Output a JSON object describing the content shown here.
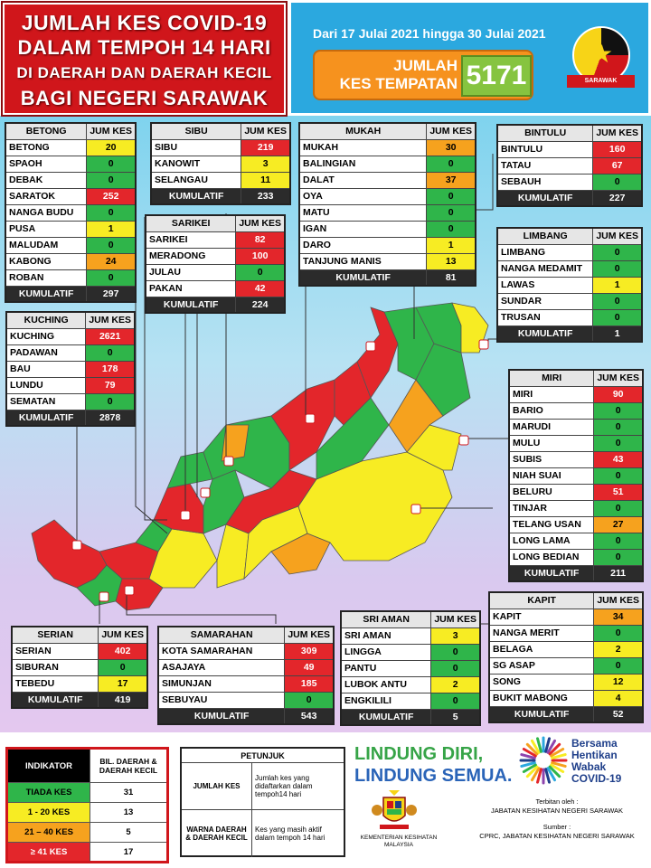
{
  "title": {
    "line1": "JUMLAH KES COVID-19",
    "line2": "DALAM TEMPOH 14 HARI",
    "line3": "DI DAERAH DAN DAERAH KECIL",
    "line4": "BAGI NEGERI SARAWAK"
  },
  "header": {
    "date_range": "Dari 17 Julai 2021 hingga 30 Julai 2021",
    "jumlah_label_1": "JUMLAH",
    "jumlah_label_2": "KES TEMPATAN",
    "jumlah_value": "5171",
    "logo_ribbon": "SARAWAK"
  },
  "colors": {
    "green": "#2fb54a",
    "yellow": "#f7ec23",
    "orange": "#f6a21e",
    "red": "#e3262b"
  },
  "divisions": {
    "betong": {
      "name": "BETONG",
      "col": "JUM KES",
      "rows": [
        {
          "n": "BETONG",
          "v": "20",
          "c": "y"
        },
        {
          "n": "SPAOH",
          "v": "0",
          "c": "g"
        },
        {
          "n": "DEBAK",
          "v": "0",
          "c": "g"
        },
        {
          "n": "SARATOK",
          "v": "252",
          "c": "r"
        },
        {
          "n": "NANGA BUDU",
          "v": "0",
          "c": "g"
        },
        {
          "n": "PUSA",
          "v": "1",
          "c": "y"
        },
        {
          "n": "MALUDAM",
          "v": "0",
          "c": "g"
        },
        {
          "n": "KABONG",
          "v": "24",
          "c": "o"
        },
        {
          "n": "ROBAN",
          "v": "0",
          "c": "g"
        }
      ],
      "kumulatif_label": "KUMULATIF",
      "kumulatif": "297"
    },
    "sibu": {
      "name": "SIBU",
      "col": "JUM KES",
      "rows": [
        {
          "n": "SIBU",
          "v": "219",
          "c": "r"
        },
        {
          "n": "KANOWIT",
          "v": "3",
          "c": "y"
        },
        {
          "n": "SELANGAU",
          "v": "11",
          "c": "y"
        }
      ],
      "kumulatif_label": "KUMULATIF",
      "kumulatif": "233"
    },
    "mukah": {
      "name": "MUKAH",
      "col": "JUM KES",
      "rows": [
        {
          "n": "MUKAH",
          "v": "30",
          "c": "o"
        },
        {
          "n": "BALINGIAN",
          "v": "0",
          "c": "g"
        },
        {
          "n": "DALAT",
          "v": "37",
          "c": "o"
        },
        {
          "n": "OYA",
          "v": "0",
          "c": "g"
        },
        {
          "n": "MATU",
          "v": "0",
          "c": "g"
        },
        {
          "n": "IGAN",
          "v": "0",
          "c": "g"
        },
        {
          "n": "DARO",
          "v": "1",
          "c": "y"
        },
        {
          "n": "TANJUNG MANIS",
          "v": "13",
          "c": "y"
        }
      ],
      "kumulatif_label": "KUMULATIF",
      "kumulatif": "81"
    },
    "bintulu": {
      "name": "BINTULU",
      "col": "JUM KES",
      "rows": [
        {
          "n": "BINTULU",
          "v": "160",
          "c": "r"
        },
        {
          "n": "TATAU",
          "v": "67",
          "c": "r"
        },
        {
          "n": "SEBAUH",
          "v": "0",
          "c": "g"
        }
      ],
      "kumulatif_label": "KUMULATIF",
      "kumulatif": "227"
    },
    "sarikei": {
      "name": "SARIKEI",
      "col": "JUM KES",
      "rows": [
        {
          "n": "SARIKEI",
          "v": "82",
          "c": "r"
        },
        {
          "n": "MERADONG",
          "v": "100",
          "c": "r"
        },
        {
          "n": "JULAU",
          "v": "0",
          "c": "g"
        },
        {
          "n": "PAKAN",
          "v": "42",
          "c": "r"
        }
      ],
      "kumulatif_label": "KUMULATIF",
      "kumulatif": "224"
    },
    "limbang": {
      "name": "LIMBANG",
      "col": "JUM KES",
      "rows": [
        {
          "n": "LIMBANG",
          "v": "0",
          "c": "g"
        },
        {
          "n": "NANGA MEDAMIT",
          "v": "0",
          "c": "g"
        },
        {
          "n": "LAWAS",
          "v": "1",
          "c": "y"
        },
        {
          "n": "SUNDAR",
          "v": "0",
          "c": "g"
        },
        {
          "n": "TRUSAN",
          "v": "0",
          "c": "g"
        }
      ],
      "kumulatif_label": "KUMULATIF",
      "kumulatif": "1"
    },
    "kuching": {
      "name": "KUCHING",
      "col": "JUM KES",
      "rows": [
        {
          "n": "KUCHING",
          "v": "2621",
          "c": "r"
        },
        {
          "n": "PADAWAN",
          "v": "0",
          "c": "g"
        },
        {
          "n": "BAU",
          "v": "178",
          "c": "r"
        },
        {
          "n": "LUNDU",
          "v": "79",
          "c": "r"
        },
        {
          "n": "SEMATAN",
          "v": "0",
          "c": "g"
        }
      ],
      "kumulatif_label": "KUMULATIF",
      "kumulatif": "2878"
    },
    "miri": {
      "name": "MIRI",
      "col": "JUM KES",
      "rows": [
        {
          "n": "MIRI",
          "v": "90",
          "c": "r"
        },
        {
          "n": "BARIO",
          "v": "0",
          "c": "g"
        },
        {
          "n": "MARUDI",
          "v": "0",
          "c": "g"
        },
        {
          "n": "MULU",
          "v": "0",
          "c": "g"
        },
        {
          "n": "SUBIS",
          "v": "43",
          "c": "r"
        },
        {
          "n": "NIAH SUAI",
          "v": "0",
          "c": "g"
        },
        {
          "n": "BELURU",
          "v": "51",
          "c": "r"
        },
        {
          "n": "TINJAR",
          "v": "0",
          "c": "g"
        },
        {
          "n": "TELANG USAN",
          "v": "27",
          "c": "o"
        },
        {
          "n": "LONG LAMA",
          "v": "0",
          "c": "g"
        },
        {
          "n": "LONG BEDIAN",
          "v": "0",
          "c": "g"
        }
      ],
      "kumulatif_label": "KUMULATIF",
      "kumulatif": "211"
    },
    "kapit": {
      "name": "KAPIT",
      "col": "JUM KES",
      "rows": [
        {
          "n": "KAPIT",
          "v": "34",
          "c": "o"
        },
        {
          "n": "NANGA MERIT",
          "v": "0",
          "c": "g"
        },
        {
          "n": "BELAGA",
          "v": "2",
          "c": "y"
        },
        {
          "n": "SG ASAP",
          "v": "0",
          "c": "g"
        },
        {
          "n": "SONG",
          "v": "12",
          "c": "y"
        },
        {
          "n": "BUKIT MABONG",
          "v": "4",
          "c": "y"
        }
      ],
      "kumulatif_label": "KUMULATIF",
      "kumulatif": "52"
    },
    "sri_aman": {
      "name": "SRI AMAN",
      "col": "JUM KES",
      "rows": [
        {
          "n": "SRI AMAN",
          "v": "3",
          "c": "y"
        },
        {
          "n": "LINGGA",
          "v": "0",
          "c": "g"
        },
        {
          "n": "PANTU",
          "v": "0",
          "c": "g"
        },
        {
          "n": "LUBOK ANTU",
          "v": "2",
          "c": "y"
        },
        {
          "n": "ENGKILILI",
          "v": "0",
          "c": "g"
        }
      ],
      "kumulatif_label": "KUMULATIF",
      "kumulatif": "5"
    },
    "samarahan": {
      "name": "SAMARAHAN",
      "col": "JUM KES",
      "rows": [
        {
          "n": "KOTA SAMARAHAN",
          "v": "309",
          "c": "r"
        },
        {
          "n": "ASAJAYA",
          "v": "49",
          "c": "r"
        },
        {
          "n": "SIMUNJAN",
          "v": "185",
          "c": "r"
        },
        {
          "n": "SEBUYAU",
          "v": "0",
          "c": "g"
        }
      ],
      "kumulatif_label": "KUMULATIF",
      "kumulatif": "543"
    },
    "serian": {
      "name": "SERIAN",
      "col": "JUM KES",
      "rows": [
        {
          "n": "SERIAN",
          "v": "402",
          "c": "r"
        },
        {
          "n": "SIBURAN",
          "v": "0",
          "c": "g"
        },
        {
          "n": "TEBEDU",
          "v": "17",
          "c": "y"
        }
      ],
      "kumulatif_label": "KUMULATIF",
      "kumulatif": "419"
    }
  },
  "indikator": {
    "h1": "INDIKATOR",
    "h2": "BIL. DAERAH & DAERAH KECIL",
    "rows": [
      {
        "label": "TIADA KES",
        "count": "31",
        "c": "g"
      },
      {
        "label": "1 - 20 KES",
        "count": "13",
        "c": "y"
      },
      {
        "label": "21 – 40 KES",
        "count": "5",
        "c": "o"
      },
      {
        "label": "≥ 41 KES",
        "count": "17",
        "c": "r"
      }
    ]
  },
  "petunjuk": {
    "title": "PETUNJUK",
    "r1a": "JUMLAH KES",
    "r1b": "Jumlah kes yang didaftarkan dalam tempoh14 hari",
    "r2a": "WARNA DAERAH & DAERAH KECIL",
    "r2b": "Kes yang masih aktif dalam tempoh 14 hari"
  },
  "footer": {
    "lindung1": "LINDUNG DIRI,",
    "lindung2": "LINDUNG SEMUA.",
    "bersama1": "Bersama",
    "bersama2": "Hentikan",
    "bersama3": "Wabak",
    "bersama4": "COVID-19",
    "kkm1": "KEMENTERIAN KESIHATAN",
    "kkm2": "MALAYSIA",
    "terbitan1": "Terbitan oleh :",
    "terbitan2": "JABATAN KESIHATAN NEGERI SARAWAK",
    "sumber1": "Sumber :",
    "sumber2": "CPRC, JABATAN KESIHATAN NEGERI SARAWAK"
  }
}
